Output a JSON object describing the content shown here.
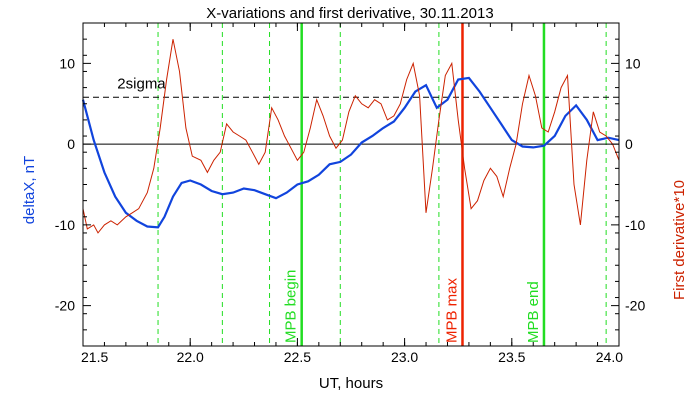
{
  "chart_data": {
    "type": "line",
    "title": "X-variations and first derivative, 30.11.2013",
    "xlabel": "UT, hours",
    "ylabel_left": "deltaX, nT",
    "ylabel_right": "First derivative*10",
    "xlim": [
      21.5,
      24.0
    ],
    "ylim": [
      -25,
      15
    ],
    "x_ticks": [
      21.5,
      22.0,
      22.5,
      23.0,
      23.5,
      24.0
    ],
    "x_tick_labels": [
      "21.5",
      "22.0",
      "22.5",
      "23.0",
      "23.5",
      "24.0"
    ],
    "y_ticks": [
      -20,
      -10,
      0,
      10
    ],
    "y_tick_labels": [
      "-20",
      "-10",
      "0",
      "10"
    ],
    "threshold": {
      "label": "2sigma",
      "value": 5.8
    },
    "zero_line": 0,
    "dashed_markers_x": [
      21.85,
      22.15,
      22.37,
      22.7,
      23.16,
      23.94
    ],
    "events": [
      {
        "label": "MPB begin",
        "x": 22.52,
        "color": "#22dd22"
      },
      {
        "label": "MPB max",
        "x": 23.27,
        "color": "#ee2200"
      },
      {
        "label": "MPB end",
        "x": 23.65,
        "color": "#22dd22"
      }
    ],
    "series": [
      {
        "name": "deltaX, nT",
        "color": "#1144dd",
        "x": [
          21.5,
          21.55,
          21.6,
          21.65,
          21.7,
          21.75,
          21.8,
          21.85,
          21.88,
          21.92,
          21.96,
          22.0,
          22.05,
          22.1,
          22.15,
          22.2,
          22.25,
          22.3,
          22.35,
          22.4,
          22.45,
          22.5,
          22.55,
          22.6,
          22.65,
          22.7,
          22.75,
          22.8,
          22.85,
          22.9,
          22.95,
          23.0,
          23.05,
          23.1,
          23.15,
          23.2,
          23.25,
          23.3,
          23.35,
          23.4,
          23.45,
          23.5,
          23.55,
          23.6,
          23.65,
          23.7,
          23.75,
          23.8,
          23.85,
          23.9,
          23.95,
          24.0
        ],
        "y": [
          5.5,
          0.5,
          -3.5,
          -6.5,
          -8.5,
          -9.5,
          -10.2,
          -10.3,
          -9.0,
          -6.5,
          -4.8,
          -4.5,
          -5.0,
          -5.8,
          -6.2,
          -6.0,
          -5.5,
          -5.7,
          -6.2,
          -6.7,
          -6.0,
          -5.0,
          -4.6,
          -3.8,
          -2.5,
          -2.2,
          -1.3,
          0.2,
          1.0,
          2.0,
          2.8,
          4.5,
          6.5,
          7.3,
          4.5,
          5.5,
          8.0,
          8.2,
          6.5,
          4.5,
          2.5,
          0.5,
          -0.3,
          -0.4,
          -0.2,
          1.0,
          3.5,
          4.8,
          3.0,
          0.5,
          0.8,
          0.5
        ]
      },
      {
        "name": "First derivative*10",
        "color": "#cc2200",
        "x": [
          21.5,
          21.52,
          21.55,
          21.57,
          21.6,
          21.63,
          21.66,
          21.7,
          21.73,
          21.76,
          21.8,
          21.83,
          21.86,
          21.89,
          21.92,
          21.95,
          21.98,
          22.01,
          22.05,
          22.08,
          22.11,
          22.14,
          22.17,
          22.2,
          22.23,
          22.26,
          22.29,
          22.32,
          22.35,
          22.38,
          22.41,
          22.44,
          22.47,
          22.5,
          22.53,
          22.56,
          22.59,
          22.62,
          22.65,
          22.68,
          22.71,
          22.74,
          22.77,
          22.8,
          22.83,
          22.86,
          22.89,
          22.92,
          22.95,
          22.98,
          23.01,
          23.04,
          23.07,
          23.1,
          23.13,
          23.16,
          23.19,
          23.22,
          23.25,
          23.28,
          23.31,
          23.34,
          23.37,
          23.4,
          23.43,
          23.46,
          23.49,
          23.52,
          23.55,
          23.58,
          23.61,
          23.64,
          23.67,
          23.7,
          23.73,
          23.76,
          23.79,
          23.82,
          23.85,
          23.88,
          23.91,
          23.94,
          23.97,
          24.0
        ],
        "y": [
          -8.0,
          -10.5,
          -10.0,
          -11.0,
          -10.0,
          -9.5,
          -10.0,
          -9.0,
          -8.5,
          -8.0,
          -6.0,
          -3.0,
          2.0,
          8.0,
          13.0,
          9.0,
          2.0,
          -1.5,
          -2.0,
          -3.5,
          -2.0,
          -1.0,
          2.5,
          1.5,
          1.0,
          0.5,
          -1.0,
          -2.5,
          -1.0,
          4.5,
          3.0,
          1.0,
          -0.5,
          -2.0,
          -1.0,
          2.0,
          5.5,
          3.5,
          1.0,
          -0.5,
          0.5,
          4.0,
          6.0,
          5.0,
          4.5,
          5.5,
          5.0,
          3.0,
          3.5,
          5.0,
          8.0,
          10.0,
          6.0,
          -8.5,
          -3.0,
          3.0,
          8.5,
          10.0,
          3.0,
          -3.0,
          -8.0,
          -7.0,
          -4.5,
          -3.0,
          -4.0,
          -6.5,
          -3.0,
          0.0,
          5.0,
          8.5,
          6.0,
          2.0,
          1.5,
          4.0,
          7.0,
          8.5,
          -5.0,
          -10.0,
          -2.0,
          4.0,
          1.5,
          1.0,
          0.0,
          -2.0
        ]
      }
    ],
    "grid": false,
    "legend": "none"
  }
}
